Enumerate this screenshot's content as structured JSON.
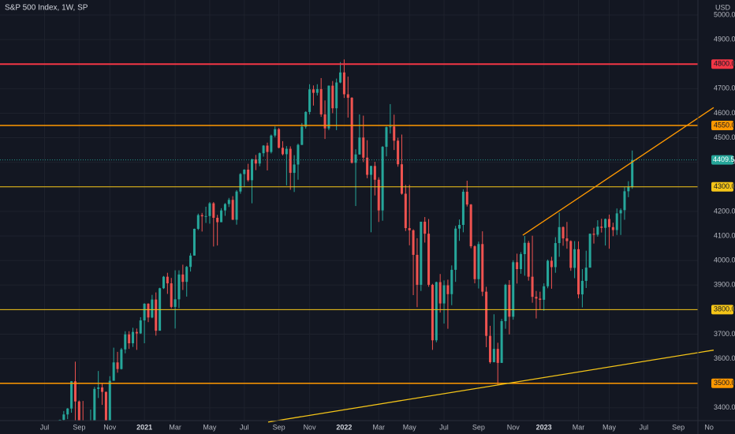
{
  "chart_data": {
    "type": "candlestick",
    "title": "S&P 500 Index, 1W, SP",
    "y_label": "USD",
    "up_color": "#26a69a",
    "down_color": "#ef5350",
    "grid": true,
    "xlim": [
      -15.6,
      166.1
    ],
    "ylim": [
      3348,
      5061
    ],
    "xticks": [
      {
        "value": -4,
        "label": "Jul"
      },
      {
        "value": 5,
        "label": "Sep"
      },
      {
        "value": 13,
        "label": "Nov"
      },
      {
        "value": 22,
        "label": "2021"
      },
      {
        "value": 30,
        "label": "Mar"
      },
      {
        "value": 39,
        "label": "May"
      },
      {
        "value": 48,
        "label": "Jul"
      },
      {
        "value": 57,
        "label": "Sep"
      },
      {
        "value": 65,
        "label": "Nov"
      },
      {
        "value": 74,
        "label": "2022"
      },
      {
        "value": 83,
        "label": "Mar"
      },
      {
        "value": 91,
        "label": "May"
      },
      {
        "value": 100,
        "label": "Jul"
      },
      {
        "value": 109,
        "label": "Sep"
      },
      {
        "value": 118,
        "label": "Nov"
      },
      {
        "value": 126,
        "label": "2023"
      },
      {
        "value": 135,
        "label": "Mar"
      },
      {
        "value": 143,
        "label": "May"
      },
      {
        "value": 152,
        "label": "Jul"
      },
      {
        "value": 161,
        "label": "Sep"
      },
      {
        "value": 169,
        "label": "No"
      }
    ],
    "yticks": [
      {
        "value": 3400,
        "label": "3400.00"
      },
      {
        "value": 3500,
        "label": "3500.00"
      },
      {
        "value": 3600,
        "label": "3600.00"
      },
      {
        "value": 3700,
        "label": "3700.00"
      },
      {
        "value": 3800,
        "label": "3800.00"
      },
      {
        "value": 3900,
        "label": "3900.00"
      },
      {
        "value": 4000,
        "label": "4000.00"
      },
      {
        "value": 4100,
        "label": "4100.00"
      },
      {
        "value": 4200,
        "label": "4200.00"
      },
      {
        "value": 4300,
        "label": "4300.00"
      },
      {
        "value": 4400,
        "label": "4400.00"
      },
      {
        "value": 4500,
        "label": "4500.00"
      },
      {
        "value": 4600,
        "label": "4600.00"
      },
      {
        "value": 4700,
        "label": "4700.00"
      },
      {
        "value": 4800,
        "label": "4800.00"
      },
      {
        "value": 4900,
        "label": "4900.00"
      },
      {
        "value": 5000,
        "label": "5000.00"
      }
    ],
    "levels": [
      {
        "value": 4800,
        "label": "4800.00",
        "color": "#f23645",
        "width": 2
      },
      {
        "value": 4550,
        "label": "4550.00",
        "color": "#ff9800",
        "width": 1.5
      },
      {
        "value": 4300,
        "label": "4300.00",
        "color": "#f5c518",
        "width": 1
      },
      {
        "value": 3800,
        "label": "3800.00",
        "color": "#f5c518",
        "width": 1
      },
      {
        "value": 3500,
        "label": "3500.00",
        "color": "#ff9800",
        "width": 1.5
      }
    ],
    "trendlines": [
      {
        "x": [
          120.5,
          170.2
        ],
        "y": [
          4103,
          4623
        ],
        "color": "#ff9800"
      },
      {
        "x": [
          54.2,
          170.2
        ],
        "y": [
          3342,
          3635
        ],
        "color": "#f5c518"
      }
    ],
    "ohlc": [
      [
        3271,
        3352,
        3260,
        3351
      ],
      [
        3351,
        3387,
        3328,
        3373
      ],
      [
        3373,
        3399,
        3354,
        3397
      ],
      [
        3397,
        3509,
        3380,
        3508
      ],
      [
        3508,
        3588,
        3349,
        3426
      ],
      [
        3426,
        3430,
        3310,
        3341
      ],
      [
        3341,
        3428,
        3300,
        3319
      ],
      [
        3319,
        3320,
        3209,
        3298
      ],
      [
        3298,
        3393,
        3297,
        3348
      ],
      [
        3348,
        3485,
        3340,
        3477
      ],
      [
        3477,
        3550,
        3440,
        3483
      ],
      [
        3483,
        3501,
        3412,
        3465
      ],
      [
        3465,
        3466,
        3233,
        3270
      ],
      [
        3270,
        3529,
        3268,
        3510
      ],
      [
        3510,
        3645,
        3511,
        3585
      ],
      [
        3585,
        3628,
        3543,
        3558
      ],
      [
        3558,
        3644,
        3556,
        3638
      ],
      [
        3638,
        3712,
        3622,
        3699
      ],
      [
        3699,
        3712,
        3640,
        3663
      ],
      [
        3663,
        3726,
        3648,
        3709
      ],
      [
        3709,
        3723,
        3636,
        3703
      ],
      [
        3703,
        3769,
        3701,
        3756
      ],
      [
        3756,
        3826,
        3663,
        3824
      ],
      [
        3824,
        3826,
        3749,
        3768
      ],
      [
        3768,
        3860,
        3765,
        3841
      ],
      [
        3841,
        3870,
        3694,
        3714
      ],
      [
        3714,
        3889,
        3725,
        3887
      ],
      [
        3887,
        3937,
        3884,
        3934
      ],
      [
        3934,
        3950,
        3864,
        3907
      ],
      [
        3907,
        3929,
        3805,
        3811
      ],
      [
        3811,
        3960,
        3723,
        3842
      ],
      [
        3842,
        3960,
        3806,
        3943
      ],
      [
        3943,
        3983,
        3880,
        3913
      ],
      [
        3913,
        3978,
        3853,
        3974
      ],
      [
        3974,
        4030,
        3955,
        4020
      ],
      [
        4020,
        4130,
        4020,
        4129
      ],
      [
        4129,
        4191,
        4124,
        4185
      ],
      [
        4185,
        4194,
        4118,
        4180
      ],
      [
        4180,
        4219,
        4153,
        4181
      ],
      [
        4181,
        4238,
        4150,
        4233
      ],
      [
        4233,
        4238,
        4057,
        4174
      ],
      [
        4174,
        4186,
        4061,
        4156
      ],
      [
        4156,
        4213,
        4156,
        4204
      ],
      [
        4204,
        4234,
        4182,
        4230
      ],
      [
        4230,
        4255,
        4218,
        4247
      ],
      [
        4247,
        4262,
        4165,
        4166
      ],
      [
        4166,
        4287,
        4146,
        4281
      ],
      [
        4281,
        4356,
        4272,
        4352
      ],
      [
        4352,
        4372,
        4301,
        4370
      ],
      [
        4370,
        4394,
        4321,
        4327
      ],
      [
        4327,
        4415,
        4233,
        4412
      ],
      [
        4412,
        4430,
        4368,
        4395
      ],
      [
        4395,
        4440,
        4384,
        4437
      ],
      [
        4437,
        4470,
        4423,
        4468
      ],
      [
        4468,
        4480,
        4367,
        4442
      ],
      [
        4442,
        4513,
        4436,
        4509
      ],
      [
        4509,
        4546,
        4502,
        4535
      ],
      [
        4535,
        4540,
        4457,
        4459
      ],
      [
        4459,
        4486,
        4428,
        4433
      ],
      [
        4433,
        4466,
        4306,
        4455
      ],
      [
        4455,
        4465,
        4288,
        4357
      ],
      [
        4357,
        4429,
        4279,
        4391
      ],
      [
        4391,
        4476,
        4329,
        4471
      ],
      [
        4471,
        4560,
        4470,
        4545
      ],
      [
        4545,
        4608,
        4537,
        4605
      ],
      [
        4605,
        4718,
        4595,
        4697
      ],
      [
        4697,
        4713,
        4631,
        4683
      ],
      [
        4683,
        4718,
        4672,
        4698
      ],
      [
        4698,
        4743,
        4585,
        4595
      ],
      [
        4595,
        4652,
        4495,
        4538
      ],
      [
        4538,
        4713,
        4531,
        4712
      ],
      [
        4712,
        4731,
        4600,
        4620
      ],
      [
        4620,
        4741,
        4531,
        4725
      ],
      [
        4725,
        4808,
        4722,
        4766
      ],
      [
        4766,
        4819,
        4662,
        4677
      ],
      [
        4677,
        4749,
        4582,
        4663
      ],
      [
        4663,
        4665,
        4395,
        4398
      ],
      [
        4398,
        4453,
        4222,
        4432
      ],
      [
        4432,
        4595,
        4431,
        4501
      ],
      [
        4501,
        4590,
        4401,
        4419
      ],
      [
        4419,
        4490,
        4335,
        4349
      ],
      [
        4349,
        4386,
        4115,
        4385
      ],
      [
        4385,
        4402,
        4265,
        4329
      ],
      [
        4329,
        4339,
        4157,
        4204
      ],
      [
        4204,
        4466,
        4162,
        4463
      ],
      [
        4463,
        4546,
        4424,
        4543
      ],
      [
        4543,
        4637,
        4517,
        4546
      ],
      [
        4546,
        4594,
        4450,
        4488
      ],
      [
        4488,
        4500,
        4382,
        4392
      ],
      [
        4392,
        4513,
        4268,
        4272
      ],
      [
        4272,
        4308,
        4120,
        4132
      ],
      [
        4132,
        4308,
        4062,
        4123
      ],
      [
        4123,
        4127,
        3859,
        4023
      ],
      [
        4023,
        4091,
        3810,
        3901
      ],
      [
        3901,
        4158,
        3876,
        4158
      ],
      [
        4158,
        4177,
        4073,
        4109
      ],
      [
        4109,
        4169,
        3893,
        3901
      ],
      [
        3901,
        3905,
        3636,
        3675
      ],
      [
        3675,
        3914,
        3667,
        3912
      ],
      [
        3912,
        3945,
        3788,
        3825
      ],
      [
        3825,
        3919,
        3743,
        3899
      ],
      [
        3899,
        3922,
        3722,
        3863
      ],
      [
        3863,
        3980,
        3818,
        3962
      ],
      [
        3962,
        4141,
        3913,
        4130
      ],
      [
        4130,
        4167,
        4080,
        4145
      ],
      [
        4145,
        4290,
        4115,
        4280
      ],
      [
        4280,
        4325,
        4220,
        4228
      ],
      [
        4228,
        4230,
        4050,
        4058
      ],
      [
        4058,
        4062,
        3907,
        3924
      ],
      [
        3924,
        4077,
        3886,
        4067
      ],
      [
        4067,
        4119,
        3855,
        3873
      ],
      [
        3873,
        3893,
        3647,
        3693
      ],
      [
        3693,
        3734,
        3580,
        3586
      ],
      [
        3586,
        3781,
        3585,
        3640
      ],
      [
        3640,
        3665,
        3491,
        3583
      ],
      [
        3583,
        3762,
        3583,
        3753
      ],
      [
        3753,
        3905,
        3722,
        3901
      ],
      [
        3901,
        3920,
        3699,
        3771
      ],
      [
        3771,
        4001,
        3759,
        3993
      ],
      [
        3993,
        4028,
        3906,
        3965
      ],
      [
        3965,
        4034,
        3946,
        4026
      ],
      [
        4026,
        4100,
        3938,
        4072
      ],
      [
        4072,
        4080,
        3918,
        3934
      ],
      [
        3934,
        4101,
        3828,
        3852
      ],
      [
        3852,
        3876,
        3764,
        3845
      ],
      [
        3845,
        3873,
        3800,
        3840
      ],
      [
        3840,
        3907,
        3795,
        3895
      ],
      [
        3895,
        4004,
        3887,
        3999
      ],
      [
        3999,
        4015,
        3885,
        3973
      ],
      [
        3973,
        4095,
        3950,
        4071
      ],
      [
        4071,
        4195,
        4015,
        4136
      ],
      [
        4136,
        4139,
        4060,
        4090
      ],
      [
        4090,
        4157,
        4048,
        4079
      ],
      [
        4079,
        4082,
        3958,
        3970
      ],
      [
        3970,
        4079,
        3928,
        4046
      ],
      [
        4046,
        4078,
        3846,
        3862
      ],
      [
        3862,
        3965,
        3809,
        3917
      ],
      [
        3917,
        4040,
        3888,
        3971
      ],
      [
        3971,
        4110,
        3971,
        4109
      ],
      [
        4109,
        4133,
        4069,
        4105
      ],
      [
        4105,
        4164,
        4097,
        4138
      ],
      [
        4138,
        4170,
        4114,
        4133
      ],
      [
        4133,
        4171,
        4061,
        4169
      ],
      [
        4169,
        4187,
        4048,
        4136
      ],
      [
        4136,
        4154,
        4099,
        4124
      ],
      [
        4124,
        4212,
        4104,
        4192
      ],
      [
        4192,
        4212,
        4104,
        4205
      ],
      [
        4205,
        4299,
        4166,
        4282
      ],
      [
        4282,
        4323,
        4258,
        4299
      ],
      [
        4299,
        4448,
        4292,
        4409.59
      ]
    ]
  }
}
